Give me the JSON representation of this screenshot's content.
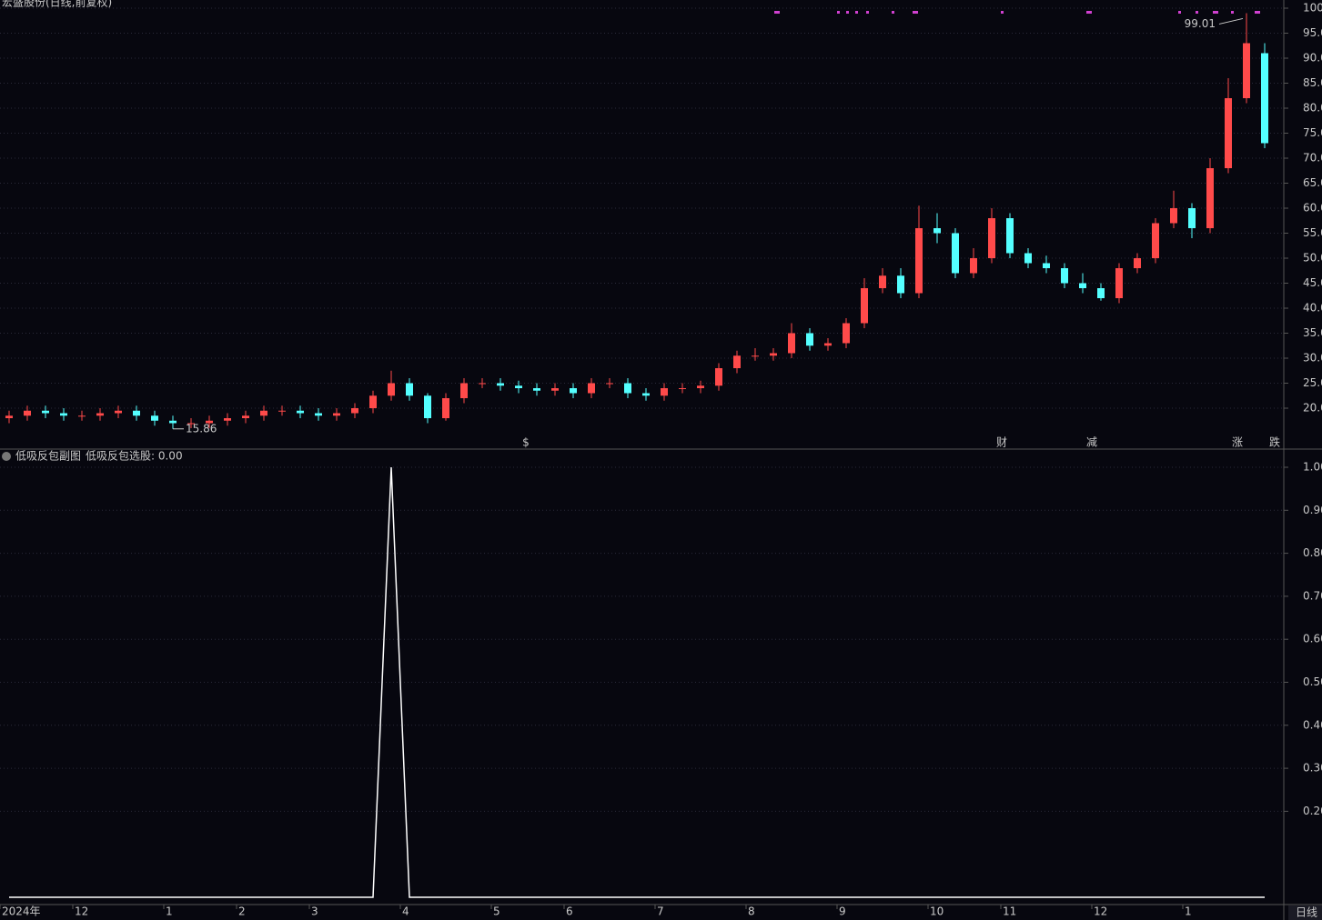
{
  "header": {
    "title": "宏盛股份(日线,前复权)",
    "period": "日线"
  },
  "chart_data": [
    {
      "type": "candlestick",
      "categories": [
        "2024年",
        null,
        null,
        null,
        "12",
        null,
        null,
        null,
        null,
        "1",
        null,
        null,
        null,
        "2",
        null,
        null,
        null,
        "3",
        null,
        null,
        null,
        null,
        "4",
        null,
        null,
        null,
        null,
        "5",
        null,
        null,
        null,
        "6",
        null,
        null,
        null,
        null,
        "7",
        null,
        null,
        null,
        null,
        "8",
        null,
        null,
        null,
        null,
        "9",
        null,
        null,
        null,
        null,
        "10",
        null,
        null,
        null,
        "11",
        null,
        null,
        null,
        null,
        "12",
        null,
        null,
        null,
        null,
        "1",
        null,
        null,
        null,
        null
      ],
      "open": [
        18,
        18.5,
        19.5,
        19,
        18.5,
        18.5,
        19,
        19.5,
        18.5,
        17.5,
        17,
        17,
        17.5,
        18,
        18.5,
        19.5,
        19.5,
        19,
        18.5,
        19,
        20,
        22.5,
        25,
        22.5,
        18,
        22,
        25,
        25,
        24.5,
        24,
        23.5,
        24,
        23,
        25,
        25,
        23,
        22.5,
        24,
        24,
        24.5,
        28,
        30.5,
        30.5,
        31,
        35,
        32.5,
        33,
        37,
        44,
        46.5,
        43,
        56,
        55,
        47,
        50,
        58,
        51,
        49,
        48,
        45,
        44,
        42,
        48,
        50,
        57,
        60,
        56,
        68,
        82,
        91
      ],
      "high": [
        19.5,
        20.5,
        20.5,
        20,
        19.5,
        20,
        20.5,
        20.5,
        19.5,
        18.5,
        18,
        18.5,
        19,
        19.5,
        20.5,
        20.5,
        20.5,
        20,
        20,
        21,
        23.5,
        27.5,
        26,
        23,
        23,
        26,
        26,
        26,
        25.5,
        25,
        25,
        25,
        26,
        26,
        26,
        24,
        25,
        25,
        25.5,
        29,
        31.5,
        32,
        32,
        37,
        36,
        34,
        38,
        46,
        48,
        48,
        60.5,
        59,
        56,
        52,
        60,
        59,
        52,
        50.5,
        49,
        47,
        45,
        49,
        51,
        58,
        63.5,
        61,
        70,
        86,
        99.01,
        93
      ],
      "low": [
        17,
        17.5,
        18,
        17.5,
        17.5,
        17.5,
        18,
        17.5,
        16.5,
        15.86,
        16,
        16,
        16.5,
        17,
        17.5,
        18.5,
        18,
        17.5,
        17.5,
        18,
        19,
        21.5,
        21.5,
        17,
        17.5,
        21,
        24,
        23.5,
        23,
        22.5,
        22.5,
        22,
        22,
        24,
        22,
        21.5,
        21.5,
        23,
        23,
        23.5,
        27,
        29.5,
        29.5,
        30,
        31.5,
        31.5,
        32,
        36,
        43,
        42,
        42,
        53,
        46,
        46,
        49,
        50,
        48,
        47,
        44,
        43,
        41.5,
        41,
        47,
        49,
        56,
        54,
        55,
        67,
        81,
        72
      ],
      "close": [
        18.5,
        19.5,
        19,
        18.5,
        18.5,
        19,
        19.5,
        18.5,
        17.5,
        17,
        17,
        17.5,
        18,
        18.5,
        19.5,
        19.5,
        19,
        18.5,
        19,
        20,
        22.5,
        25,
        22.5,
        18,
        22,
        25,
        25,
        24.5,
        24,
        23.5,
        24,
        23,
        25,
        25,
        23,
        22.5,
        24,
        24,
        24.5,
        28,
        30.5,
        30.5,
        31,
        35,
        32.5,
        33,
        37,
        44,
        46.5,
        43,
        56,
        55,
        47,
        50,
        58,
        51,
        49,
        48,
        45,
        44,
        42,
        48,
        50,
        57,
        60,
        56,
        68,
        82,
        93,
        73
      ],
      "up_color": "#ff4a4a",
      "down_color": "#54ffff",
      "ylim": [
        12,
        101
      ],
      "yticks": [
        {
          "value": 20,
          "label": "20.00"
        },
        {
          "value": 25,
          "label": "25.00"
        },
        {
          "value": 30,
          "label": "30.00"
        },
        {
          "value": 35,
          "label": "35.00"
        },
        {
          "value": 40,
          "label": "40.00"
        },
        {
          "value": 45,
          "label": "45.00"
        },
        {
          "value": 50,
          "label": "50.00"
        },
        {
          "value": 55,
          "label": "55.00"
        },
        {
          "value": 60,
          "label": "60.00"
        },
        {
          "value": 65,
          "label": "65.00"
        },
        {
          "value": 70,
          "label": "70.00"
        },
        {
          "value": 75,
          "label": "75.00"
        },
        {
          "value": 80,
          "label": "80.00"
        },
        {
          "value": 85,
          "label": "85.00"
        },
        {
          "value": 90,
          "label": "90.00"
        },
        {
          "value": 95,
          "label": "95.00"
        },
        100
      ],
      "grid": true,
      "events": [
        {
          "label": "$",
          "color": "#ff3030"
        },
        {
          "label": "财",
          "color": "#4aa0ff"
        },
        {
          "label": "减",
          "color": "#30c030"
        },
        {
          "label": "涨",
          "color": "#ff3030"
        },
        {
          "label": "跌",
          "color": "#30c030"
        }
      ]
    },
    {
      "type": "line",
      "title": "低吸反包副图",
      "subtitle": "低吸反包选股: 0.00",
      "color": "#ffffff",
      "values": [
        0,
        0,
        0,
        0,
        0,
        0,
        0,
        0,
        0,
        0,
        0,
        0,
        0,
        0,
        0,
        0,
        0,
        0,
        0,
        0,
        0,
        1,
        0,
        0,
        0,
        0,
        0,
        0,
        0,
        0,
        0,
        0,
        0,
        0,
        0,
        0,
        0,
        0,
        0,
        0,
        0,
        0,
        0,
        0,
        0,
        0,
        0,
        0,
        0,
        0,
        0,
        0,
        0,
        0,
        0,
        0,
        0,
        0,
        0,
        0,
        0,
        0,
        0,
        0,
        0,
        0,
        0,
        0,
        0,
        0
      ],
      "ylim": [
        0,
        1
      ],
      "yticks": [
        {
          "value": 0.2,
          "label": "0.20"
        },
        {
          "value": 0.3,
          "label": "0.30"
        },
        {
          "value": 0.4,
          "label": "0.40"
        },
        {
          "value": 0.5,
          "label": "0.50"
        },
        {
          "value": 0.6,
          "label": "0.60"
        },
        {
          "value": 0.7,
          "label": "0.70"
        },
        {
          "value": 0.8,
          "label": "0.80"
        },
        {
          "value": 0.9,
          "label": "0.90"
        },
        {
          "value": 1,
          "label": "1.00"
        }
      ],
      "grid": true
    }
  ]
}
